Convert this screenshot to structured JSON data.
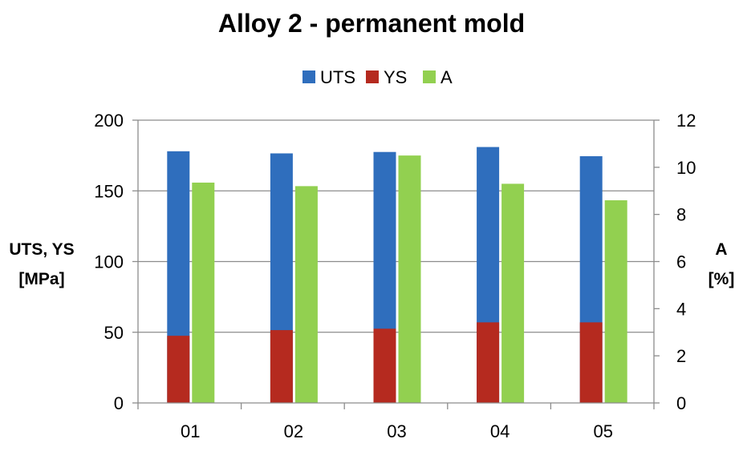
{
  "chart_data": {
    "type": "bar",
    "title": "Alloy 2 - permanent mold",
    "categories": [
      "01",
      "02",
      "03",
      "04",
      "05"
    ],
    "series": [
      {
        "name": "UTS",
        "axis": "left",
        "color": "#2f6ebd",
        "stacked_behind": "YS",
        "values": [
          178,
          176.5,
          177.5,
          181,
          174.5
        ]
      },
      {
        "name": "YS",
        "axis": "left",
        "color": "#b52a1f",
        "values": [
          47.5,
          51.5,
          52.5,
          57,
          57
        ]
      },
      {
        "name": "A",
        "axis": "right",
        "color": "#92d050",
        "values": [
          9.35,
          9.2,
          10.5,
          9.3,
          8.6
        ]
      }
    ],
    "ylabel_left": [
      "UTS, YS",
      "[MPa]"
    ],
    "ylabel_right": [
      "A",
      "[%]"
    ],
    "ylim_left": [
      0,
      200
    ],
    "ylim_right": [
      0,
      12
    ],
    "yticks_left": [
      "0",
      "50",
      "100",
      "150",
      "200"
    ],
    "yticks_right": [
      "0",
      "2",
      "4",
      "6",
      "8",
      "10",
      "12"
    ],
    "grid": true,
    "legend_position": "top-center"
  }
}
